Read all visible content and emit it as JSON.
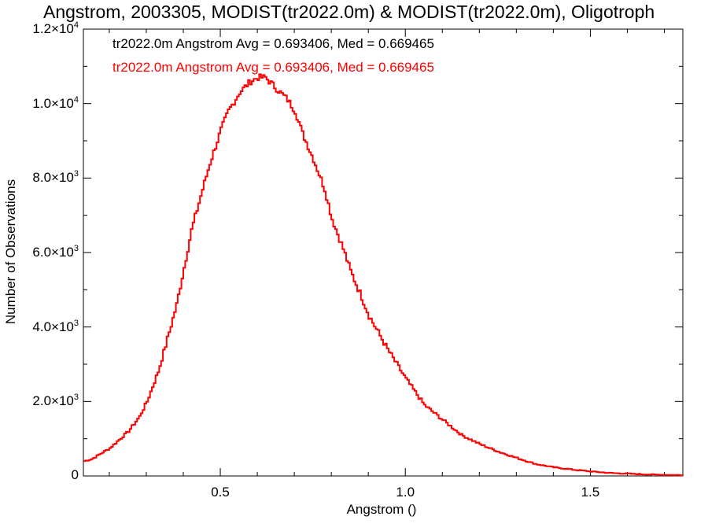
{
  "chart_data": {
    "type": "histogram",
    "title": "Angstrom, 2003305, MODIST(tr2022.0m) & MODIST(tr2022.0m), Oligotroph",
    "xlabel": "Angstrom ()",
    "ylabel": "Number of Observations",
    "xlim": [
      0.13,
      1.75
    ],
    "ylim": [
      0,
      12000
    ],
    "x_ticks": [
      {
        "value": 0.5,
        "label": "0.5"
      },
      {
        "value": 1.0,
        "label": "1.0"
      },
      {
        "value": 1.5,
        "label": "1.5"
      }
    ],
    "y_ticks": [
      {
        "value": 0,
        "mantissa": "0",
        "exp": ""
      },
      {
        "value": 2000,
        "mantissa": "2.0×10",
        "exp": "3"
      },
      {
        "value": 4000,
        "mantissa": "4.0×10",
        "exp": "3"
      },
      {
        "value": 6000,
        "mantissa": "6.0×10",
        "exp": "3"
      },
      {
        "value": 8000,
        "mantissa": "8.0×10",
        "exp": "3"
      },
      {
        "value": 10000,
        "mantissa": "1.0×10",
        "exp": "4"
      },
      {
        "value": 12000,
        "mantissa": "1.2×10",
        "exp": "4"
      }
    ],
    "legend": [
      {
        "text": "tr2022.0m Angstrom Avg = 0.693406, Med = 0.669465",
        "color": "#000000"
      },
      {
        "text": "tr2022.0m Angstrom Avg = 0.693406, Med = 0.669465",
        "color": "#ff0000"
      }
    ],
    "series": [
      {
        "color": "#ff0000",
        "x": [
          0.13,
          0.15,
          0.2,
          0.25,
          0.28,
          0.3,
          0.33,
          0.35,
          0.38,
          0.4,
          0.42,
          0.45,
          0.47,
          0.5,
          0.52,
          0.55,
          0.58,
          0.6,
          0.62,
          0.65,
          0.68,
          0.7,
          0.72,
          0.75,
          0.78,
          0.8,
          0.83,
          0.85,
          0.88,
          0.9,
          0.95,
          1.0,
          1.05,
          1.1,
          1.15,
          1.2,
          1.25,
          1.3,
          1.35,
          1.4,
          1.45,
          1.5,
          1.55,
          1.6,
          1.65,
          1.7,
          1.75
        ],
        "y": [
          400,
          450,
          750,
          1200,
          1600,
          2000,
          2800,
          3500,
          4600,
          5600,
          6600,
          7700,
          8400,
          9300,
          9800,
          10300,
          10600,
          10700,
          10700,
          10400,
          10100,
          9800,
          9200,
          8500,
          7700,
          6900,
          6100,
          5500,
          4800,
          4300,
          3400,
          2600,
          1900,
          1500,
          1100,
          850,
          650,
          480,
          320,
          230,
          170,
          120,
          80,
          60,
          40,
          30,
          20
        ]
      }
    ]
  }
}
